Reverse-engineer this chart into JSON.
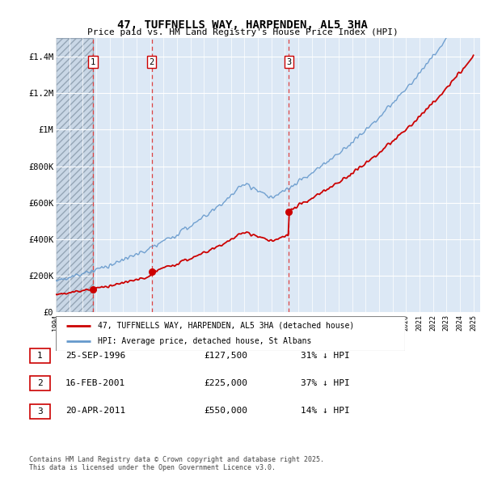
{
  "title": "47, TUFFNELLS WAY, HARPENDEN, AL5 3HA",
  "subtitle": "Price paid vs. HM Land Registry's House Price Index (HPI)",
  "sold_labels": [
    "1",
    "2",
    "3"
  ],
  "sold_prices": [
    127500,
    225000,
    550000
  ],
  "legend_sold": "47, TUFFNELLS WAY, HARPENDEN, AL5 3HA (detached house)",
  "legend_hpi": "HPI: Average price, detached house, St Albans",
  "table_rows": [
    [
      "1",
      "25-SEP-1996",
      "£127,500",
      "31% ↓ HPI"
    ],
    [
      "2",
      "16-FEB-2001",
      "£225,000",
      "37% ↓ HPI"
    ],
    [
      "3",
      "20-APR-2011",
      "£550,000",
      "14% ↓ HPI"
    ]
  ],
  "footnote": "Contains HM Land Registry data © Crown copyright and database right 2025.\nThis data is licensed under the Open Government Licence v3.0.",
  "sold_color": "#cc0000",
  "hpi_color": "#6699cc",
  "vline_color": "#dd4444",
  "bg_color": "#dce8f5",
  "hatch_color": "#c8d8e8",
  "ylim": [
    0,
    1500000
  ],
  "yticks": [
    0,
    200000,
    400000,
    600000,
    800000,
    1000000,
    1200000,
    1400000
  ],
  "ytick_labels": [
    "£0",
    "£200K",
    "£400K",
    "£600K",
    "£800K",
    "£1M",
    "£1.2M",
    "£1.4M"
  ],
  "sold_date_dec": [
    1996.75,
    2001.125,
    2011.3
  ]
}
